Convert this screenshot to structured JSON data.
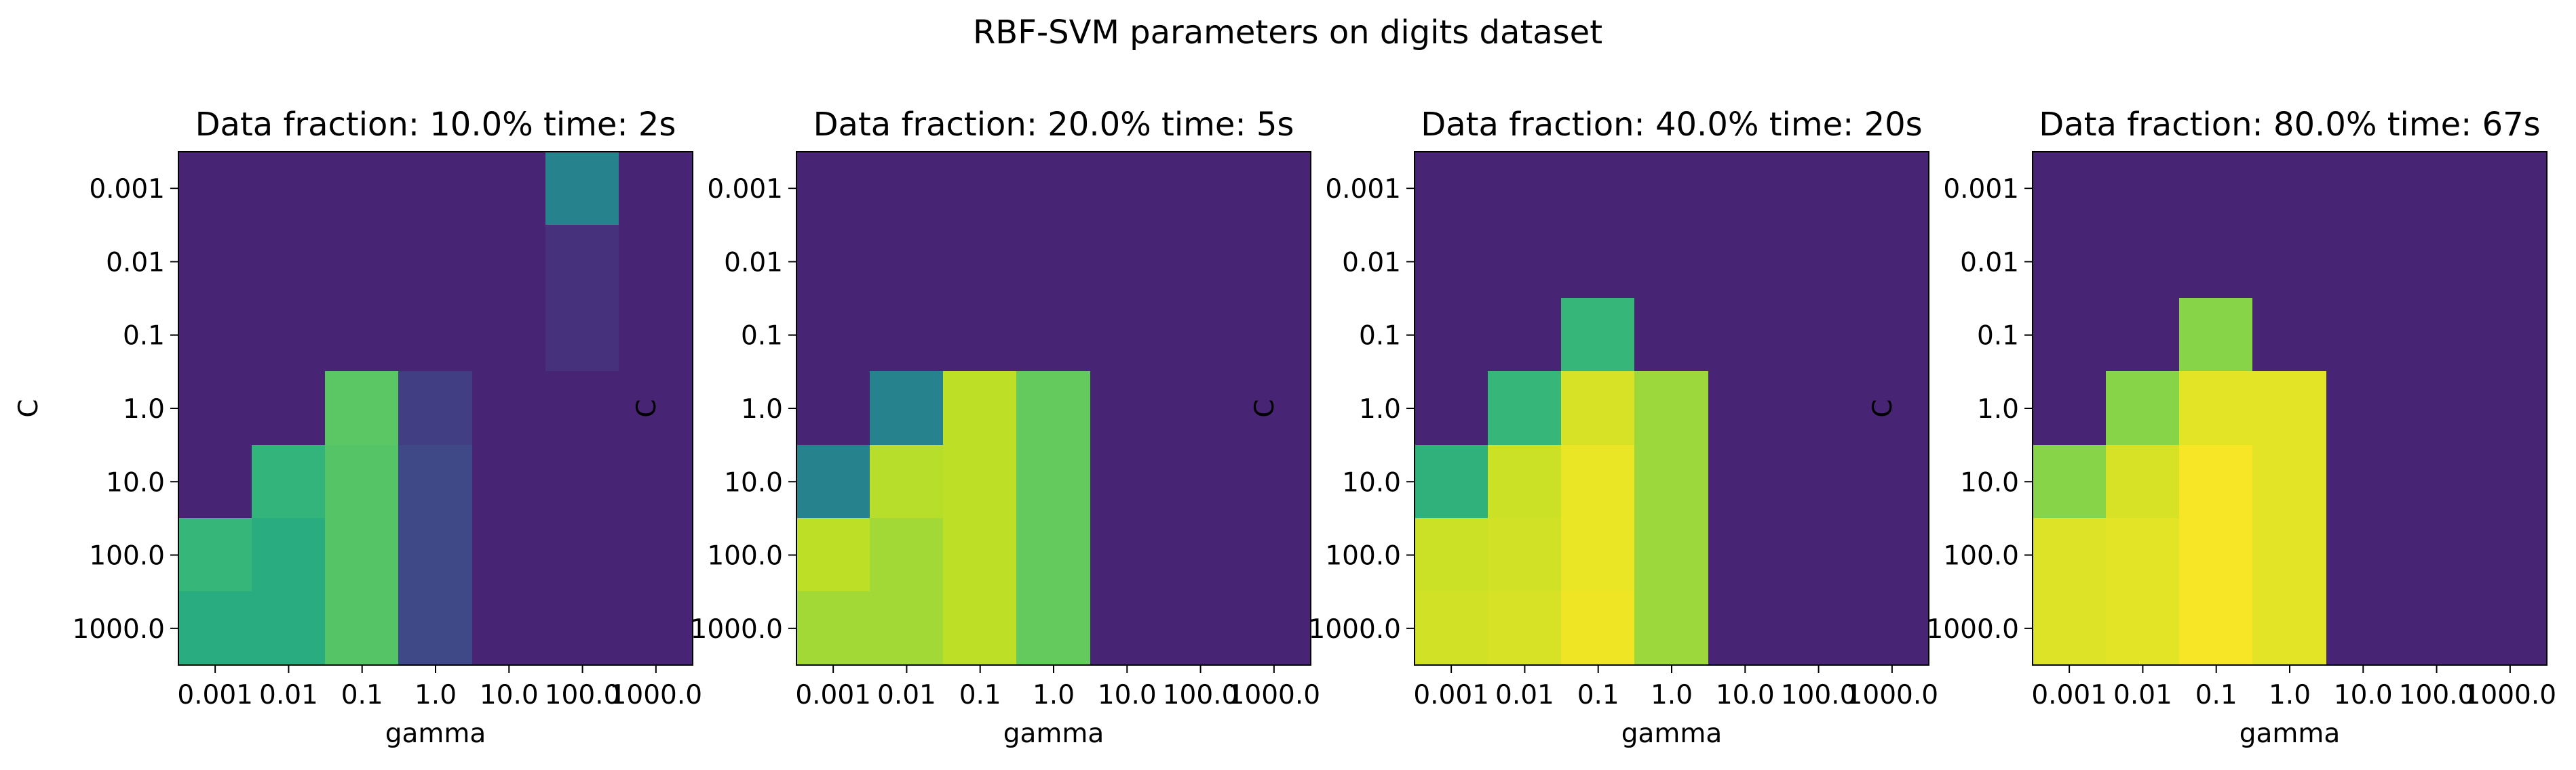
{
  "figure": {
    "suptitle": "RBF-SVM parameters on digits dataset"
  },
  "colormap": {
    "name": "viridis",
    "stops": [
      "#440154",
      "#482475",
      "#414487",
      "#355f8d",
      "#2a788e",
      "#21918c",
      "#22a884",
      "#44bf70",
      "#7ad151",
      "#bddf26",
      "#fde725"
    ]
  },
  "chart_data": [
    {
      "type": "heatmap",
      "title": "Data fraction: 10.0% time: 2s",
      "xlabel": "gamma",
      "ylabel": "C",
      "x_ticks": [
        "0.001",
        "0.01",
        "0.1",
        "1.0",
        "10.0",
        "100.0",
        "1000.0"
      ],
      "y_ticks": [
        "0.001",
        "0.01",
        "0.1",
        "1.0",
        "10.0",
        "100.0",
        "1000.0"
      ],
      "values": [
        [
          0.1,
          0.1,
          0.1,
          0.1,
          0.1,
          0.44,
          0.1
        ],
        [
          0.1,
          0.1,
          0.1,
          0.1,
          0.1,
          0.14,
          0.1
        ],
        [
          0.1,
          0.1,
          0.1,
          0.1,
          0.1,
          0.14,
          0.1
        ],
        [
          0.1,
          0.1,
          0.74,
          0.18,
          0.1,
          0.1,
          0.1
        ],
        [
          0.1,
          0.65,
          0.73,
          0.22,
          0.1,
          0.1,
          0.1
        ],
        [
          0.66,
          0.62,
          0.73,
          0.22,
          0.1,
          0.1,
          0.1
        ],
        [
          0.62,
          0.62,
          0.73,
          0.22,
          0.1,
          0.1,
          0.1
        ]
      ]
    },
    {
      "type": "heatmap",
      "title": "Data fraction: 20.0% time: 5s",
      "xlabel": "gamma",
      "ylabel": "C",
      "x_ticks": [
        "0.001",
        "0.01",
        "0.1",
        "1.0",
        "10.0",
        "100.0",
        "1000.0"
      ],
      "y_ticks": [
        "0.001",
        "0.01",
        "0.1",
        "1.0",
        "10.0",
        "100.0",
        "1000.0"
      ],
      "values": [
        [
          0.1,
          0.1,
          0.1,
          0.1,
          0.1,
          0.1,
          0.1
        ],
        [
          0.1,
          0.1,
          0.1,
          0.1,
          0.1,
          0.1,
          0.1
        ],
        [
          0.1,
          0.1,
          0.1,
          0.1,
          0.1,
          0.1,
          0.1
        ],
        [
          0.1,
          0.44,
          0.9,
          0.76,
          0.1,
          0.1,
          0.1
        ],
        [
          0.44,
          0.89,
          0.9,
          0.76,
          0.1,
          0.1,
          0.1
        ],
        [
          0.9,
          0.86,
          0.9,
          0.76,
          0.1,
          0.1,
          0.1
        ],
        [
          0.86,
          0.86,
          0.9,
          0.76,
          0.1,
          0.1,
          0.1
        ]
      ]
    },
    {
      "type": "heatmap",
      "title": "Data fraction: 40.0% time: 20s",
      "xlabel": "gamma",
      "ylabel": "C",
      "x_ticks": [
        "0.001",
        "0.01",
        "0.1",
        "1.0",
        "10.0",
        "100.0",
        "1000.0"
      ],
      "y_ticks": [
        "0.001",
        "0.01",
        "0.1",
        "1.0",
        "10.0",
        "100.0",
        "1000.0"
      ],
      "values": [
        [
          0.1,
          0.1,
          0.1,
          0.1,
          0.1,
          0.1,
          0.1
        ],
        [
          0.1,
          0.1,
          0.1,
          0.1,
          0.1,
          0.1,
          0.1
        ],
        [
          0.1,
          0.1,
          0.66,
          0.1,
          0.1,
          0.1,
          0.1
        ],
        [
          0.1,
          0.66,
          0.94,
          0.85,
          0.1,
          0.1,
          0.1
        ],
        [
          0.64,
          0.92,
          0.97,
          0.85,
          0.1,
          0.1,
          0.1
        ],
        [
          0.92,
          0.93,
          0.97,
          0.85,
          0.1,
          0.1,
          0.1
        ],
        [
          0.93,
          0.94,
          0.98,
          0.85,
          0.1,
          0.1,
          0.1
        ]
      ]
    },
    {
      "type": "heatmap",
      "title": "Data fraction: 80.0% time: 67s",
      "xlabel": "gamma",
      "ylabel": "C",
      "x_ticks": [
        "0.001",
        "0.01",
        "0.1",
        "1.0",
        "10.0",
        "100.0",
        "1000.0"
      ],
      "y_ticks": [
        "0.001",
        "0.01",
        "0.1",
        "1.0",
        "10.0",
        "100.0",
        "1000.0"
      ],
      "values": [
        [
          0.1,
          0.1,
          0.1,
          0.1,
          0.1,
          0.1,
          0.1
        ],
        [
          0.1,
          0.1,
          0.1,
          0.1,
          0.1,
          0.1,
          0.1
        ],
        [
          0.1,
          0.1,
          0.82,
          0.1,
          0.1,
          0.1,
          0.1
        ],
        [
          0.1,
          0.82,
          0.96,
          0.96,
          0.1,
          0.1,
          0.1
        ],
        [
          0.82,
          0.94,
          0.99,
          0.96,
          0.1,
          0.1,
          0.1
        ],
        [
          0.95,
          0.96,
          0.99,
          0.96,
          0.1,
          0.1,
          0.1
        ],
        [
          0.95,
          0.96,
          0.99,
          0.96,
          0.1,
          0.1,
          0.1
        ]
      ]
    }
  ]
}
